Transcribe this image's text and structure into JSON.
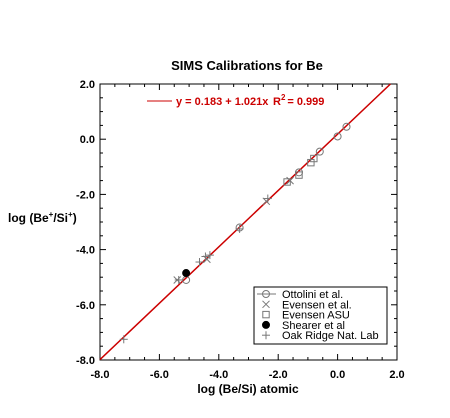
{
  "chart_data": {
    "type": "scatter",
    "title": "SIMS Calibrations for Be",
    "xlabel": "log (Be/Si) atomic",
    "ylabel_main": "log (Be",
    "ylabel_sup1": "+",
    "ylabel_mid": "/Si",
    "ylabel_sup2": "+",
    "ylabel_end": ")",
    "xlim": [
      -8.0,
      2.0
    ],
    "ylim": [
      -8.0,
      2.0
    ],
    "xticks": [
      "-8.0",
      "-6.0",
      "-4.0",
      "-2.0",
      "0.0",
      "2.0"
    ],
    "yticks": [
      "-8.0",
      "-6.0",
      "-4.0",
      "-2.0",
      "0.0",
      "2.0"
    ],
    "xtick_values": [
      -8,
      -6,
      -4,
      -2,
      0,
      2
    ],
    "ytick_values": [
      -8,
      -6,
      -4,
      -2,
      0,
      2
    ],
    "fit": {
      "intercept": 0.183,
      "slope": 1.021,
      "equation_text": "y = 0.183 + 1.021x",
      "r2_prefix": "R",
      "r2_sup": "2",
      "r2_value": "= 0.999",
      "color": "#cc0000"
    },
    "grid": false,
    "legend_position": "bottom-right",
    "series": [
      {
        "name": "Ottolini et al.",
        "marker": "circle-open",
        "points": [
          [
            -5.1,
            -5.1
          ],
          [
            -3.3,
            -3.2
          ],
          [
            -1.3,
            -1.2
          ],
          [
            -0.6,
            -0.45
          ],
          [
            0.0,
            0.1
          ],
          [
            0.3,
            0.45
          ]
        ]
      },
      {
        "name": "Evensen et al.",
        "marker": "x",
        "points": [
          [
            -5.4,
            -5.1
          ],
          [
            -4.4,
            -4.35
          ],
          [
            -2.4,
            -2.25
          ],
          [
            -1.6,
            -1.5
          ]
        ]
      },
      {
        "name": "Evensen ASU",
        "marker": "square-open",
        "points": [
          [
            -1.7,
            -1.55
          ],
          [
            -1.3,
            -1.3
          ],
          [
            -0.9,
            -0.85
          ],
          [
            -0.8,
            -0.7
          ]
        ]
      },
      {
        "name": "Shearer et al",
        "marker": "circle-filled",
        "points": [
          [
            -5.1,
            -4.85
          ]
        ]
      },
      {
        "name": "Oak Ridge Nat. Lab",
        "marker": "plus",
        "points": [
          [
            -7.2,
            -7.25
          ],
          [
            -5.35,
            -5.1
          ],
          [
            -4.65,
            -4.45
          ],
          [
            -4.45,
            -4.25
          ],
          [
            -4.3,
            -4.2
          ],
          [
            -3.3,
            -3.25
          ],
          [
            -2.35,
            -2.15
          ]
        ]
      }
    ]
  }
}
